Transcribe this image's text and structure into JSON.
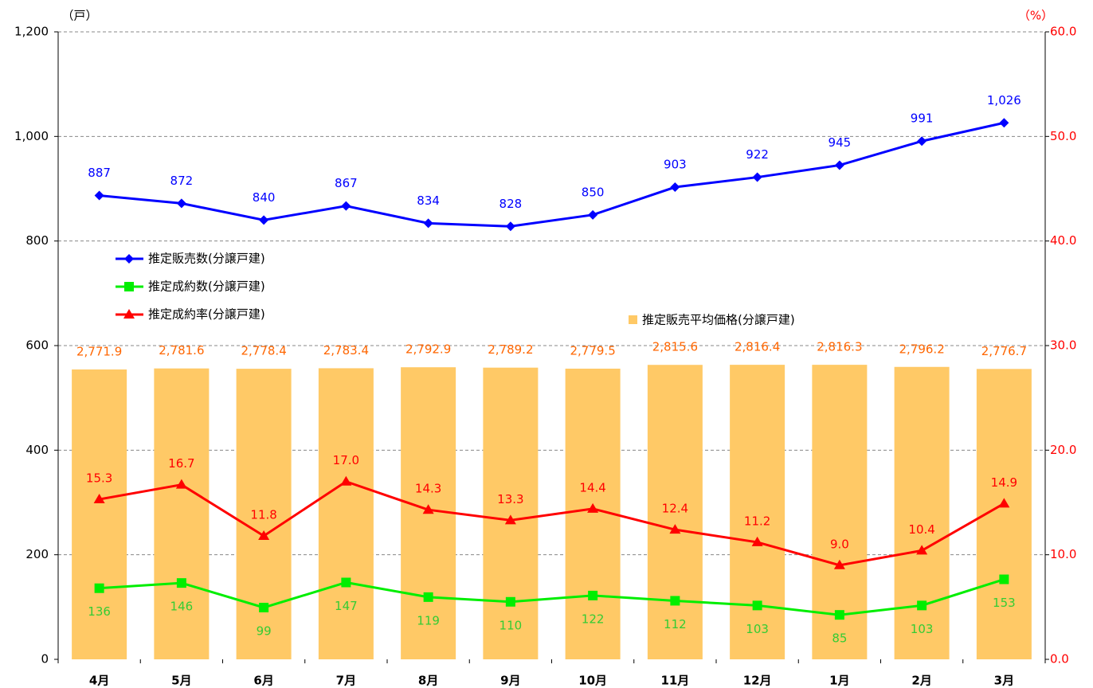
{
  "chart_data": {
    "type": "combo",
    "y_unit_label": "（戸）",
    "y2_unit_label": "（%）",
    "categories": [
      "4月",
      "5月",
      "6月",
      "7月",
      "8月",
      "9月",
      "10月",
      "11月",
      "12月",
      "1月",
      "2月",
      "3月"
    ],
    "ylim": [
      0,
      1200
    ],
    "yticks": [
      0,
      200,
      400,
      600,
      800,
      {
        "value": 1000,
        "label": "1,000"
      },
      {
        "value": 1200,
        "label": "1,200"
      }
    ],
    "y2lim": [
      0,
      60
    ],
    "y2ticks": [
      {
        "value": 0,
        "label": "0.0"
      },
      {
        "value": 10,
        "label": "10.0"
      },
      {
        "value": 20,
        "label": "20.0"
      },
      {
        "value": 30,
        "label": "30.0"
      },
      {
        "value": 40,
        "label": "40.0"
      },
      {
        "value": 50,
        "label": "50.0"
      },
      {
        "value": 60,
        "label": "60.0"
      }
    ],
    "y3lim": [
      0,
      6000
    ],
    "grid": true,
    "series": [
      {
        "name": "推定販売平均価格(分譲戸建)",
        "type": "bar",
        "axis": "y3",
        "color": "#ffc966",
        "label_color": "#ff6600",
        "values": [
          2771.9,
          2781.6,
          2778.4,
          2783.4,
          2792.9,
          2789.2,
          2779.5,
          2815.6,
          2816.4,
          2816.3,
          2796.2,
          2776.7
        ],
        "value_labels": [
          "2,771.9",
          "2,781.6",
          "2,778.4",
          "2,783.4",
          "2,792.9",
          "2,789.2",
          "2,779.5",
          "2,815.6",
          "2,816.4",
          "2,816.3",
          "2,796.2",
          "2,776.7"
        ]
      },
      {
        "name": "推定販売数(分譲戸建)",
        "type": "line",
        "axis": "y",
        "marker": "diamond",
        "color": "#0000ff",
        "label_color": "#0000ff",
        "values": [
          887,
          872,
          840,
          867,
          834,
          828,
          850,
          903,
          922,
          945,
          991,
          1026
        ],
        "value_labels": [
          "887",
          "872",
          "840",
          "867",
          "834",
          "828",
          "850",
          "903",
          "922",
          "945",
          "991",
          "1,026"
        ]
      },
      {
        "name": "推定成約数(分譲戸建)",
        "type": "line",
        "axis": "y",
        "marker": "square",
        "color": "#00ee00",
        "label_color": "#33cc33",
        "values": [
          136,
          146,
          99,
          147,
          119,
          110,
          122,
          112,
          103,
          85,
          103,
          153
        ],
        "value_labels": [
          "136",
          "146",
          "99",
          "147",
          "119",
          "110",
          "122",
          "112",
          "103",
          "85",
          "103",
          "153"
        ]
      },
      {
        "name": "推定成約率(分譲戸建)",
        "type": "line",
        "axis": "y2",
        "marker": "triangle",
        "color": "#ff0000",
        "label_color": "#ff0000",
        "values": [
          15.3,
          16.7,
          11.8,
          17.0,
          14.3,
          13.3,
          14.4,
          12.4,
          11.2,
          9.0,
          10.4,
          14.9
        ],
        "value_labels": [
          "15.3",
          "16.7",
          "11.8",
          "17.0",
          "14.3",
          "13.3",
          "14.4",
          "12.4",
          "11.2",
          "9.0",
          "10.4",
          "14.9"
        ]
      }
    ]
  }
}
